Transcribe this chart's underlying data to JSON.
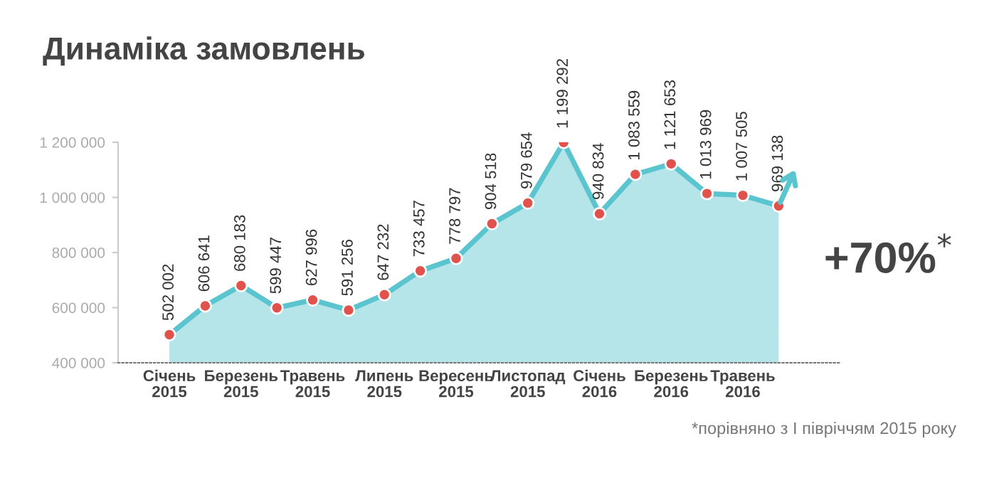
{
  "chart_data": {
    "type": "area",
    "title": "Динаміка замовлень",
    "categories": [
      "Січень\n2015",
      null,
      "Березень\n2015",
      null,
      "Травень\n2015",
      null,
      "Липень\n2015",
      null,
      "Вересень\n2015",
      null,
      "Листопад\n2015",
      null,
      "Січень\n2016",
      null,
      "Березень\n2016",
      null,
      "Травень\n2016",
      null
    ],
    "series": [
      {
        "color": "#5bc5cf",
        "colors": [
          "#e0524b",
          "#e0524b",
          "#e0524b",
          "#e0524b",
          "#e0524b",
          "#e0524b",
          "#e0524b",
          "#e0524b",
          "#e0524b",
          "#e0524b",
          "#e0524b",
          "#e0524b",
          "#e0524b",
          "#e0524b",
          "#e0524b",
          "#e0524b",
          "#e0524b",
          "#e0524b"
        ],
        "values": [
          502002,
          606641,
          680183,
          599447,
          627996,
          591256,
          647232,
          733457,
          778797,
          904518,
          979654,
          1199292,
          940834,
          1083559,
          1121653,
          1013969,
          1007505,
          969138
        ],
        "value_labels": [
          "502 002",
          "606 641",
          "680 183",
          "599 447",
          "627 996",
          "591 256",
          "647 232",
          "733 457",
          "778 797",
          "904 518",
          "979 654",
          "1 199 292",
          "940 834",
          "1 083 559",
          "1 121 653",
          "1 013 969",
          "1 007 505",
          "969 138"
        ]
      }
    ],
    "ylim": [
      400000,
      1200000
    ],
    "yticks": [
      {
        "value": 400000,
        "label": "400 000"
      },
      {
        "value": 600000,
        "label": "600 000"
      },
      {
        "value": 800000,
        "label": "800 000"
      },
      {
        "value": 1000000,
        "label": "1 000 000"
      },
      {
        "value": 1200000,
        "label": "1 200 000"
      }
    ],
    "grid": false,
    "legend": false,
    "marker": "circle",
    "line_style": "solid",
    "annotations": [
      "+70%$^{*}$",
      "*порівняно з I півріччям 2015 року"
    ]
  }
}
